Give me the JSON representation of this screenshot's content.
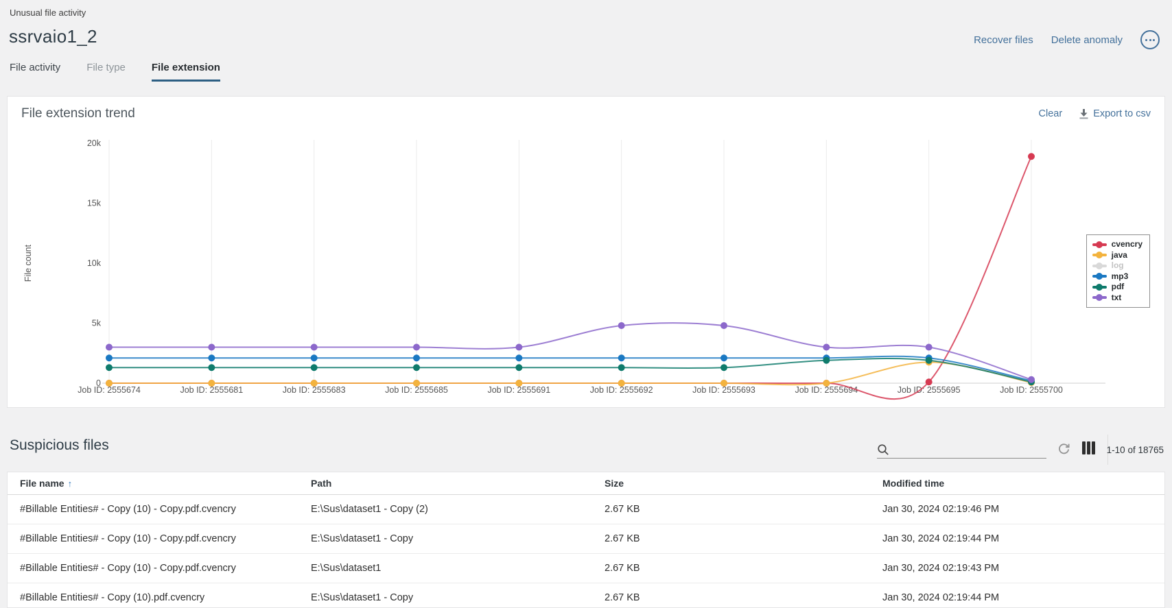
{
  "page": {
    "breadcrumb": "Unusual file activity",
    "title": "ssrvaio1_2",
    "actions": {
      "recover": "Recover files",
      "delete": "Delete anomaly",
      "more": "ellipsis-icon"
    },
    "tabs": [
      {
        "label": "File activity",
        "active": false,
        "muted": false
      },
      {
        "label": "File type",
        "active": false,
        "muted": true
      },
      {
        "label": "File extension",
        "active": true,
        "muted": false
      }
    ]
  },
  "chart_card": {
    "title": "File extension trend",
    "clear_label": "Clear",
    "export_label": "Export to csv",
    "export_icon": "download-icon"
  },
  "chart_data": {
    "type": "line",
    "title": "File extension trend",
    "xlabel": "",
    "ylabel": "File count",
    "ylim": [
      0,
      20000
    ],
    "grid": "vertical",
    "legend_position": "right",
    "yticks": [
      {
        "v": 0,
        "label": "0"
      },
      {
        "v": 5000,
        "label": "5k"
      },
      {
        "v": 10000,
        "label": "10k"
      },
      {
        "v": 15000,
        "label": "15k"
      },
      {
        "v": 20000,
        "label": "20k"
      }
    ],
    "categories": [
      "Job ID: 2555674",
      "Job ID: 2555681",
      "Job ID: 2555683",
      "Job ID: 2555685",
      "Job ID: 2555691",
      "Job ID: 2555692",
      "Job ID: 2555693",
      "Job ID: 2555694",
      "Job ID: 2555695",
      "Job ID: 2555700"
    ],
    "series": [
      {
        "name": "cvencry",
        "color": "#d63a52",
        "disabled": false,
        "values": [
          0,
          0,
          0,
          0,
          0,
          0,
          0,
          0,
          100,
          18900
        ]
      },
      {
        "name": "java",
        "color": "#f3b33e",
        "disabled": false,
        "values": [
          0,
          0,
          0,
          0,
          0,
          0,
          0,
          0,
          1750,
          50
        ]
      },
      {
        "name": "log",
        "color": "#cccccc",
        "disabled": true,
        "values": []
      },
      {
        "name": "mp3",
        "color": "#1a78c2",
        "disabled": false,
        "values": [
          2100,
          2100,
          2100,
          2100,
          2100,
          2100,
          2100,
          2100,
          2100,
          200
        ]
      },
      {
        "name": "pdf",
        "color": "#0f7b6c",
        "disabled": false,
        "values": [
          1300,
          1300,
          1300,
          1300,
          1300,
          1300,
          1300,
          1900,
          1900,
          100
        ]
      },
      {
        "name": "txt",
        "color": "#8c68cb",
        "disabled": false,
        "values": [
          3000,
          3000,
          3000,
          3000,
          3000,
          4800,
          4800,
          3000,
          3000,
          300
        ]
      }
    ]
  },
  "table_card": {
    "title": "Suspicious files",
    "search_placeholder": "",
    "pagination": "1-10 of 18765",
    "tools": {
      "refresh": "refresh-icon",
      "columns": "column-chooser-icon",
      "search": "magnifier-icon"
    },
    "columns": [
      {
        "label": "File name",
        "sorted": "asc"
      },
      {
        "label": "Path",
        "sorted": null
      },
      {
        "label": "Size",
        "sorted": null
      },
      {
        "label": "Modified time",
        "sorted": null
      }
    ],
    "rows": [
      {
        "name": "#Billable Entities# - Copy (10) - Copy.pdf.cvencry",
        "path": "E:\\Sus\\dataset1 - Copy (2)",
        "size": "2.67 KB",
        "modified": "Jan 30, 2024 02:19:46 PM"
      },
      {
        "name": "#Billable Entities# - Copy (10) - Copy.pdf.cvencry",
        "path": "E:\\Sus\\dataset1 - Copy",
        "size": "2.67 KB",
        "modified": "Jan 30, 2024 02:19:44 PM"
      },
      {
        "name": "#Billable Entities# - Copy (10) - Copy.pdf.cvencry",
        "path": "E:\\Sus\\dataset1",
        "size": "2.67 KB",
        "modified": "Jan 30, 2024 02:19:43 PM"
      },
      {
        "name": "#Billable Entities# - Copy (10).pdf.cvencry",
        "path": "E:\\Sus\\dataset1 - Copy",
        "size": "2.67 KB",
        "modified": "Jan 30, 2024 02:19:44 PM"
      }
    ]
  },
  "colors": {
    "accent_link": "#44719b",
    "tab_underline": "#2d5f83",
    "page_bg": "#f1f1f2"
  }
}
